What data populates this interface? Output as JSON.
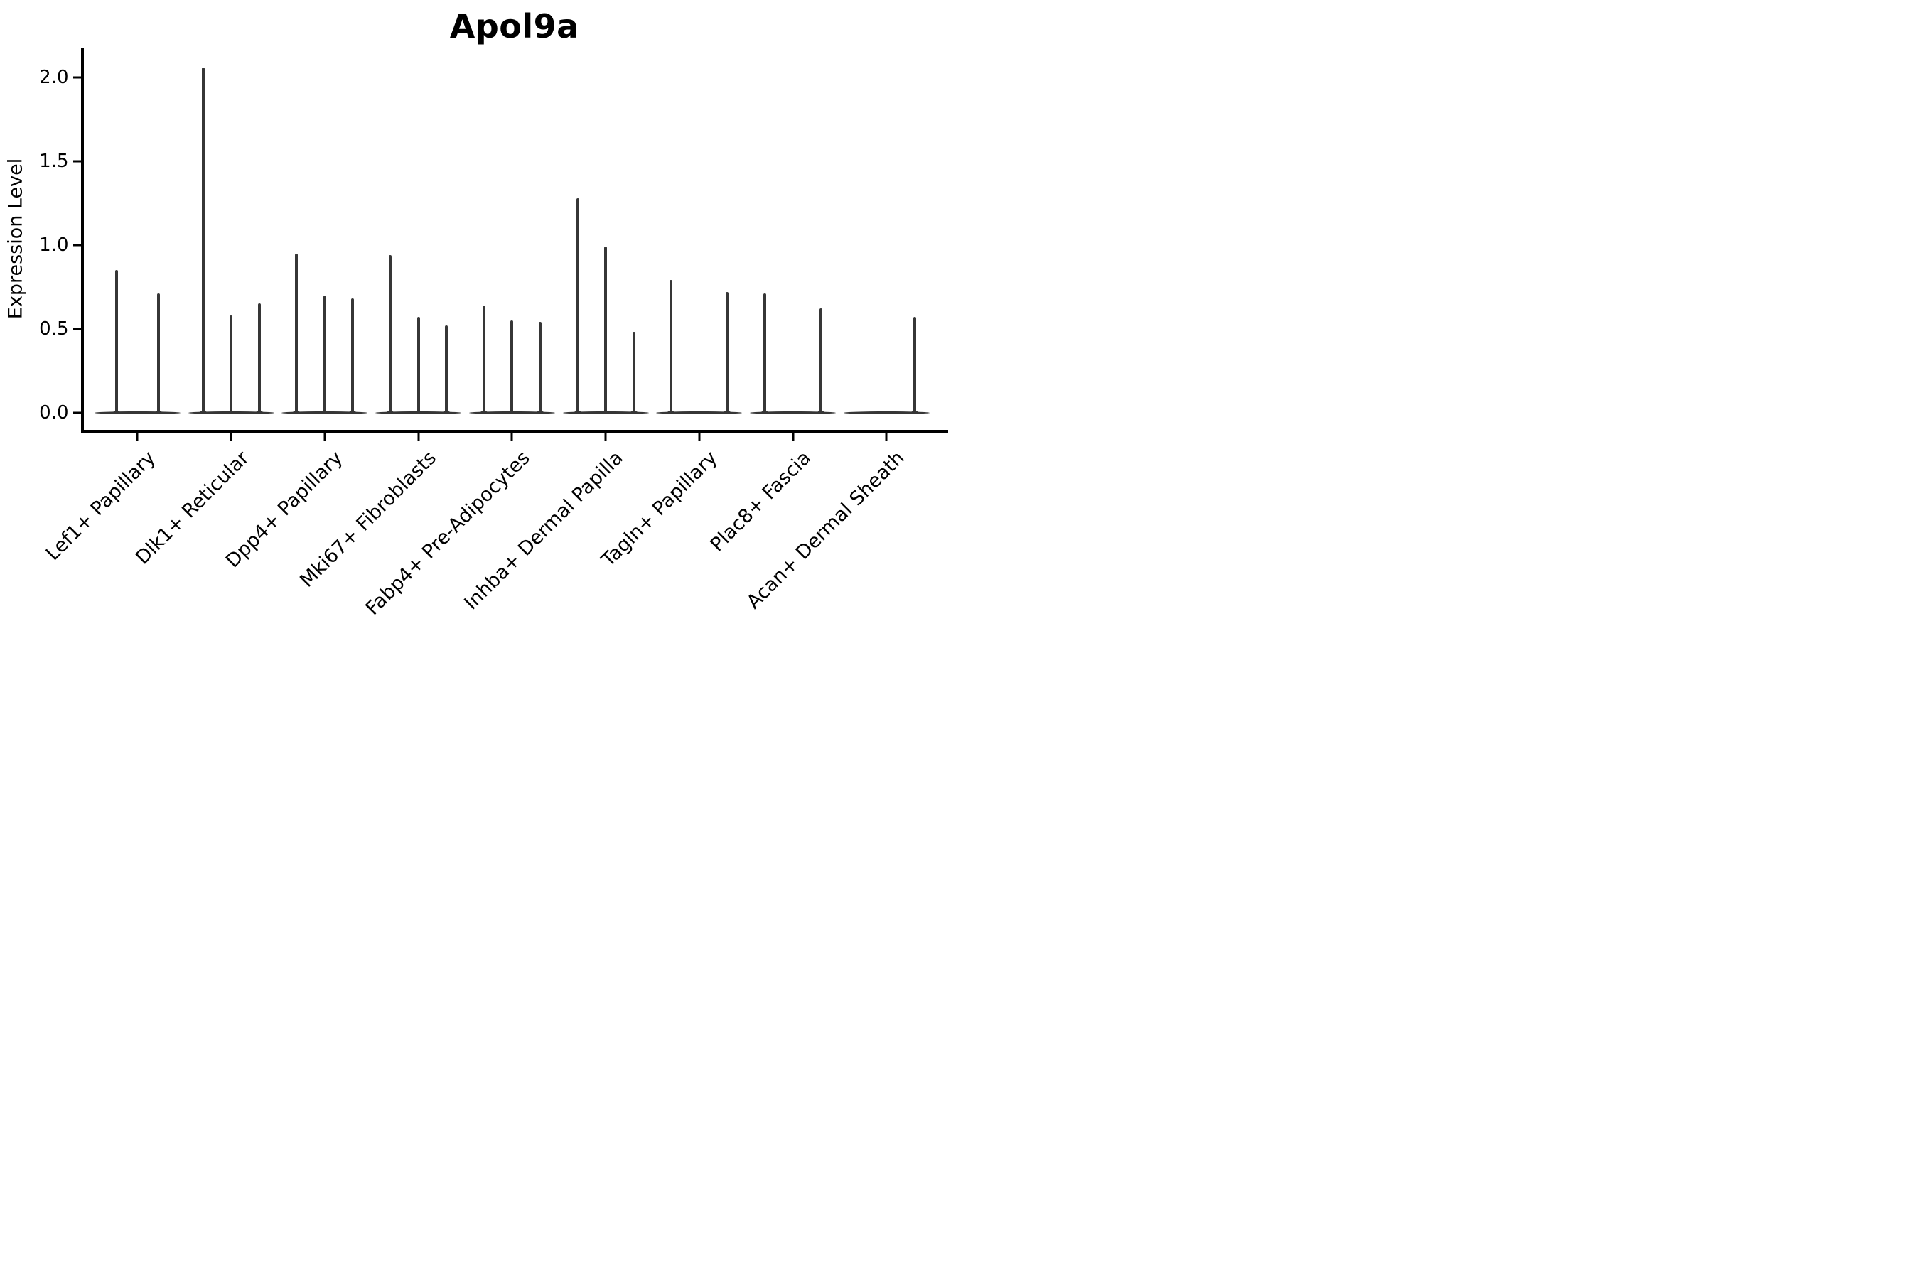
{
  "title": "Apol9a",
  "chart_data": {
    "type": "violin",
    "title": "Apol9a",
    "xlabel": "",
    "ylabel": "Expression Level",
    "ylim": [
      0,
      2.2
    ],
    "yticks": [
      0.0,
      0.5,
      1.0,
      1.5,
      2.0
    ],
    "grid": false,
    "legend": "none",
    "background_color": "#ffffff",
    "violin_color": "#363636",
    "axis_color": "#000000",
    "categories": [
      "Lef1+ Papillary",
      "Dlk1+ Reticular",
      "Dpp4+ Papillary",
      "Mki67+ Fibroblasts",
      "Fabp4+ Pre-Adipocytes",
      "Inhba+ Dermal Papilla",
      "Tagln+ Papillary",
      "Plac8+ Fascia",
      "Acan+ Dermal Sheath"
    ],
    "description": "Very thin violins: dense flat body at expression 0 spanning each group, with narrow vertical tails (spikes) reaching the maximum expression per sub-violin. Offsets are fractions of the inter-group spacing.",
    "groups": [
      {
        "category": "Lef1+ Papillary",
        "violins": [
          {
            "offset": -0.224,
            "max": 0.85
          },
          {
            "offset": 0.224,
            "max": 0.71
          }
        ]
      },
      {
        "category": "Dlk1+ Reticular",
        "violins": [
          {
            "offset": -0.3,
            "max": 2.06
          },
          {
            "offset": 0.0,
            "max": 0.58
          },
          {
            "offset": 0.3,
            "max": 0.65
          }
        ]
      },
      {
        "category": "Dpp4+ Papillary",
        "violins": [
          {
            "offset": -0.3,
            "max": 0.95
          },
          {
            "offset": 0.0,
            "max": 0.7
          },
          {
            "offset": 0.3,
            "max": 0.68
          }
        ]
      },
      {
        "category": "Mki67+ Fibroblasts",
        "violins": [
          {
            "offset": -0.3,
            "max": 0.94
          },
          {
            "offset": 0.0,
            "max": 0.57
          },
          {
            "offset": 0.3,
            "max": 0.52
          }
        ]
      },
      {
        "category": "Fabp4+ Pre-Adipocytes",
        "violins": [
          {
            "offset": -0.3,
            "max": 0.64
          },
          {
            "offset": 0.0,
            "max": 0.55
          },
          {
            "offset": 0.3,
            "max": 0.54
          }
        ]
      },
      {
        "category": "Inhba+ Dermal Papilla",
        "violins": [
          {
            "offset": -0.3,
            "max": 1.28
          },
          {
            "offset": 0.0,
            "max": 0.99
          },
          {
            "offset": 0.3,
            "max": 0.48
          }
        ]
      },
      {
        "category": "Tagln+ Papillary",
        "violins": [
          {
            "offset": -0.3,
            "max": 0.79
          },
          {
            "offset": 0.3,
            "max": 0.72
          }
        ]
      },
      {
        "category": "Plac8+ Fascia",
        "violins": [
          {
            "offset": -0.3,
            "max": 0.71
          },
          {
            "offset": 0.3,
            "max": 0.62
          }
        ]
      },
      {
        "category": "Acan+ Dermal Sheath",
        "violins": [
          {
            "offset": 0.3,
            "max": 0.57
          }
        ]
      }
    ]
  }
}
